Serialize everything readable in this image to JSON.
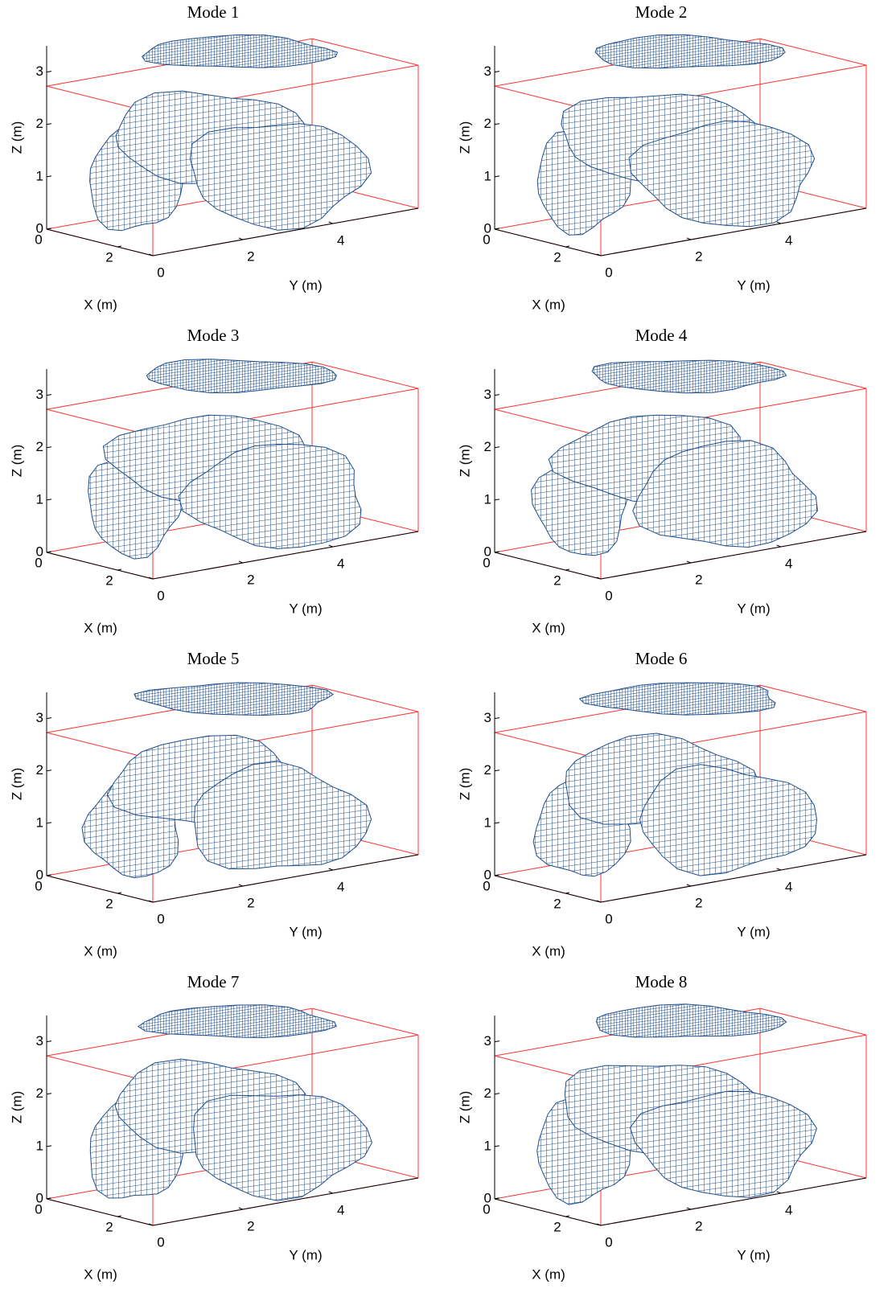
{
  "chart_data": [
    {
      "type": "mesh3d",
      "title": "Mode 1",
      "xlabel": "X (m)",
      "ylabel": "Y (m)",
      "zlabel": "Z (m)",
      "xlim": [
        0,
        3
      ],
      "ylim": [
        0,
        5.9
      ],
      "zlim": [
        0,
        3.5
      ],
      "xticks": [
        0,
        2
      ],
      "yticks": [
        0,
        2,
        4
      ],
      "zticks": [
        0,
        1,
        2,
        3
      ],
      "mesh_color": "#1f4e8c",
      "box_color": "#ff3030"
    },
    {
      "type": "mesh3d",
      "title": "Mode 2",
      "xlabel": "X (m)",
      "ylabel": "Y (m)",
      "zlabel": "Z (m)",
      "xlim": [
        0,
        3
      ],
      "ylim": [
        0,
        5.9
      ],
      "zlim": [
        0,
        3.5
      ],
      "xticks": [
        0,
        2
      ],
      "yticks": [
        0,
        2,
        4
      ],
      "zticks": [
        0,
        1,
        2,
        3
      ],
      "mesh_color": "#1f4e8c",
      "box_color": "#ff3030"
    },
    {
      "type": "mesh3d",
      "title": "Mode 3",
      "xlabel": "X (m)",
      "ylabel": "Y (m)",
      "zlabel": "Z (m)",
      "xlim": [
        0,
        3
      ],
      "ylim": [
        0,
        5.9
      ],
      "zlim": [
        0,
        3.5
      ],
      "xticks": [
        0,
        2
      ],
      "yticks": [
        0,
        2,
        4
      ],
      "zticks": [
        0,
        1,
        2,
        3
      ],
      "mesh_color": "#1f4e8c",
      "box_color": "#ff3030"
    },
    {
      "type": "mesh3d",
      "title": "Mode 4",
      "xlabel": "X (m)",
      "ylabel": "Y (m)",
      "zlabel": "Z (m)",
      "xlim": [
        0,
        3
      ],
      "ylim": [
        0,
        5.9
      ],
      "zlim": [
        0,
        3.5
      ],
      "xticks": [
        0,
        2
      ],
      "yticks": [
        0,
        2,
        4
      ],
      "zticks": [
        0,
        1,
        2,
        3
      ],
      "mesh_color": "#1f4e8c",
      "box_color": "#ff3030"
    },
    {
      "type": "mesh3d",
      "title": "Mode 5",
      "xlabel": "X (m)",
      "ylabel": "Y (m)",
      "zlabel": "Z (m)",
      "xlim": [
        0,
        3
      ],
      "ylim": [
        0,
        5.9
      ],
      "zlim": [
        0,
        3.5
      ],
      "xticks": [
        0,
        2
      ],
      "yticks": [
        0,
        2,
        4
      ],
      "zticks": [
        0,
        1,
        2,
        3
      ],
      "mesh_color": "#1f4e8c",
      "box_color": "#ff3030"
    },
    {
      "type": "mesh3d",
      "title": "Mode 6",
      "xlabel": "X (m)",
      "ylabel": "Y (m)",
      "zlabel": "Z (m)",
      "xlim": [
        0,
        3
      ],
      "ylim": [
        0,
        5.9
      ],
      "zlim": [
        0,
        3.5
      ],
      "xticks": [
        0,
        2
      ],
      "yticks": [
        0,
        2,
        4
      ],
      "zticks": [
        0,
        1,
        2,
        3
      ],
      "mesh_color": "#1f4e8c",
      "box_color": "#ff3030"
    },
    {
      "type": "mesh3d",
      "title": "Mode 7",
      "xlabel": "X (m)",
      "ylabel": "Y (m)",
      "zlabel": "Z (m)",
      "xlim": [
        0,
        3
      ],
      "ylim": [
        0,
        5.9
      ],
      "zlim": [
        0,
        3.5
      ],
      "xticks": [
        0,
        2
      ],
      "yticks": [
        0,
        2,
        4
      ],
      "zticks": [
        0,
        1,
        2,
        3
      ],
      "mesh_color": "#1f4e8c",
      "box_color": "#ff3030"
    },
    {
      "type": "mesh3d",
      "title": "Mode 8",
      "xlabel": "X (m)",
      "ylabel": "Y (m)",
      "zlabel": "Z (m)",
      "xlim": [
        0,
        3
      ],
      "ylim": [
        0,
        5.9
      ],
      "zlim": [
        0,
        3.5
      ],
      "xticks": [
        0,
        2
      ],
      "yticks": [
        0,
        2,
        4
      ],
      "zticks": [
        0,
        1,
        2,
        3
      ],
      "mesh_color": "#1f4e8c",
      "box_color": "#ff3030"
    }
  ]
}
